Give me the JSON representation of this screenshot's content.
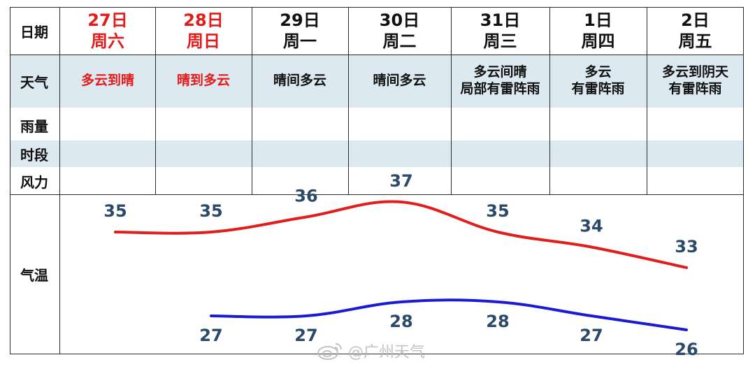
{
  "table": {
    "row_labels": {
      "date": "日期",
      "weather": "天气",
      "rain": "雨量",
      "period": "时段",
      "wind": "风力",
      "temp": "气温"
    },
    "days": [
      {
        "date": "27日",
        "weekday": "周六",
        "weather": [
          "多云到晴"
        ],
        "highlight": true
      },
      {
        "date": "28日",
        "weekday": "周日",
        "weather": [
          "晴到多云"
        ],
        "highlight": true
      },
      {
        "date": "29日",
        "weekday": "周一",
        "weather": [
          "晴间多云"
        ],
        "highlight": false
      },
      {
        "date": "30日",
        "weekday": "周二",
        "weather": [
          "晴间多云"
        ],
        "highlight": false
      },
      {
        "date": "31日",
        "weekday": "周三",
        "weather": [
          "多云间晴",
          "局部有雷阵雨"
        ],
        "highlight": false
      },
      {
        "date": "1日",
        "weekday": "周四",
        "weather": [
          "多云",
          "有雷阵雨"
        ],
        "highlight": false
      },
      {
        "date": "2日",
        "weekday": "周五",
        "weather": [
          "多云到阴天",
          "有雷阵雨"
        ],
        "highlight": false
      }
    ],
    "colors": {
      "band": "#dce9f1",
      "highlight_text": "#e21b1b",
      "high_line": "#e01e1e",
      "low_line": "#1b1bd4",
      "temp_label": "#2b4a6b"
    }
  },
  "chart_data": {
    "type": "line",
    "categories": [
      "27日",
      "28日",
      "29日",
      "30日",
      "31日",
      "1日",
      "2日"
    ],
    "series": [
      {
        "values": [
          35,
          35,
          36,
          37,
          35,
          34,
          33
        ],
        "color": "#e01e1e"
      },
      {
        "values": [
          null,
          27,
          27,
          28,
          28,
          27,
          26
        ],
        "color": "#1b1bd4"
      }
    ],
    "xlabel": "",
    "ylabel": "气温",
    "grid": false,
    "legend": "none"
  },
  "watermark": {
    "text": "@广州天气",
    "icon": "weibo-icon"
  }
}
